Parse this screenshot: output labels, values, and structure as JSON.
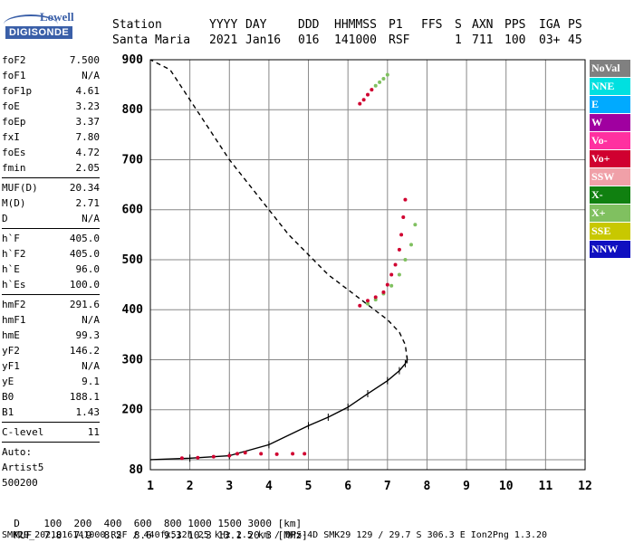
{
  "logo": {
    "line1": "Lowell",
    "line2": "DIGISONDE"
  },
  "header": {
    "labels": [
      "Station",
      "YYYY",
      "DAY",
      "DDD",
      "HHMMSS",
      "P1",
      "FFS",
      "S",
      "AXN",
      "PPS",
      "IGA",
      "PS"
    ],
    "values": [
      "Santa Maria",
      "2021",
      "Jan16",
      "016",
      "141000",
      "RSF",
      "",
      "1",
      "711",
      "100",
      "03+",
      "45"
    ]
  },
  "params": {
    "group1": [
      [
        "foF2",
        "7.500"
      ],
      [
        "foF1",
        "N/A"
      ],
      [
        "foF1p",
        "4.61"
      ],
      [
        "foE",
        "3.23"
      ],
      [
        "foEp",
        "3.37"
      ],
      [
        "fxI",
        "7.80"
      ],
      [
        "foEs",
        "4.72"
      ],
      [
        "fmin",
        "2.05"
      ]
    ],
    "group2": [
      [
        "MUF(D)",
        "20.34"
      ],
      [
        "M(D)",
        "2.71"
      ],
      [
        "D",
        "N/A"
      ]
    ],
    "group3": [
      [
        "h`F",
        "405.0"
      ],
      [
        "h`F2",
        "405.0"
      ],
      [
        "h`E",
        "96.0"
      ],
      [
        "h`Es",
        "100.0"
      ]
    ],
    "group4": [
      [
        "hmF2",
        "291.6"
      ],
      [
        "hmF1",
        "N/A"
      ],
      [
        "hmE",
        "99.3"
      ],
      [
        "yF2",
        "146.2"
      ],
      [
        "yF1",
        "N/A"
      ],
      [
        "yE",
        "9.1"
      ],
      [
        "B0",
        "188.1"
      ],
      [
        "B1",
        "1.43"
      ]
    ],
    "group5": [
      [
        "C-level",
        "11"
      ]
    ],
    "footer": [
      "Auto:",
      "Artist5",
      "500200"
    ]
  },
  "legend": [
    {
      "label": "NoVal",
      "color": "#808080"
    },
    {
      "label": "NNE",
      "color": "#00e0e0"
    },
    {
      "label": "E",
      "color": "#00aaff"
    },
    {
      "label": "W",
      "color": "#a000a0"
    },
    {
      "label": "Vo-",
      "color": "#ff30a0"
    },
    {
      "label": "Vo+",
      "color": "#d00030"
    },
    {
      "label": "SSW",
      "color": "#f0a0a8"
    },
    {
      "label": "X-",
      "color": "#108010"
    },
    {
      "label": "X+",
      "color": "#80c060"
    },
    {
      "label": "SSE",
      "color": "#c8c800"
    },
    {
      "label": "NNW",
      "color": "#1010c0"
    }
  ],
  "muf_table": {
    "d_label": "D",
    "d_values": [
      "100",
      "200",
      "400",
      "600",
      "800",
      "1000",
      "1500",
      "3000"
    ],
    "d_unit": "[km]",
    "muf_label": "MUF",
    "muf_values": [
      "7.8",
      "7.9",
      "8.2",
      "8.6",
      "9.3",
      "10.3",
      "13.1",
      "20.3"
    ],
    "muf_unit": "[MHz]"
  },
  "footer_line": "SMK29_2021016141000.RSF / 440fx512h 25 kHz 2.5 km / DPS-4D SMK29 129 / 29.7 S 306.3 E Ion2Png 1.3.20",
  "chart_data": {
    "type": "scatter",
    "xlim": [
      1,
      12
    ],
    "ylim": [
      80,
      900
    ],
    "xticks": [
      1,
      2,
      3,
      4,
      5,
      6,
      7,
      8,
      9,
      10,
      11,
      12
    ],
    "yticks": [
      80,
      100,
      200,
      300,
      400,
      500,
      600,
      700,
      800,
      900
    ],
    "ytick_labels": [
      "80",
      "",
      "200",
      "300",
      "400",
      "500",
      "600",
      "700",
      "800",
      "900"
    ],
    "grid": true,
    "profile_curve": {
      "name": "",
      "x": [
        1.0,
        2.0,
        3.0,
        4.0,
        5.0,
        5.5,
        6.0,
        6.5,
        7.0,
        7.3,
        7.45,
        7.5,
        7.45,
        7.3,
        7.0,
        6.5,
        6.0,
        5.5,
        5.0,
        4.5,
        4.0,
        3.5,
        3.0,
        2.5,
        2.0,
        1.5,
        1.0
      ],
      "y": [
        100,
        103,
        108,
        130,
        168,
        185,
        205,
        232,
        258,
        278,
        292,
        300,
        330,
        355,
        380,
        410,
        440,
        470,
        510,
        550,
        600,
        650,
        700,
        760,
        820,
        880,
        920
      ]
    },
    "series": [
      {
        "name": "X+",
        "color": "#80c060",
        "x": [
          6.5,
          6.7,
          6.9,
          7.1,
          7.3,
          7.45,
          7.6,
          7.7
        ],
        "y": [
          412,
          420,
          432,
          448,
          470,
          500,
          530,
          570
        ]
      },
      {
        "name": "Vo+",
        "color": "#d00030",
        "x": [
          6.3,
          6.5,
          6.7,
          6.9,
          7.0,
          7.1,
          7.2,
          7.3,
          7.35,
          7.4,
          7.45
        ],
        "y": [
          408,
          418,
          425,
          435,
          450,
          470,
          490,
          520,
          550,
          585,
          620
        ]
      },
      {
        "name": "Vo+",
        "color": "#d00030",
        "x": [
          1.8,
          2.2,
          2.6,
          3.0,
          3.2,
          3.4,
          3.8,
          4.2,
          4.6,
          4.9
        ],
        "y": [
          103,
          104,
          106,
          108,
          112,
          114,
          112,
          111,
          112,
          112
        ]
      },
      {
        "name": "Vo+",
        "color": "#d00030",
        "x": [
          6.3,
          6.4,
          6.5,
          6.6
        ],
        "y": [
          812,
          820,
          830,
          840
        ]
      },
      {
        "name": "X+",
        "color": "#80c060",
        "x": [
          6.7,
          6.8,
          6.9,
          7.0
        ],
        "y": [
          848,
          855,
          862,
          870
        ]
      }
    ]
  }
}
